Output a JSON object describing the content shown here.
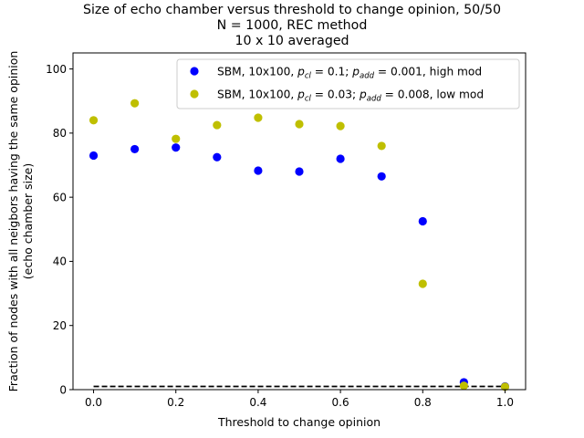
{
  "chart_data": {
    "type": "scatter",
    "title_lines": [
      "Size of echo chamber versus threshold to change opinion, 50/50",
      "N = 1000, REC method",
      "10 x 10 averaged"
    ],
    "xlabel": "Threshold to change opinion",
    "ylabel_lines": [
      "Fraction of nodes with all neigbors having the same opinion",
      "(echo chamber size)"
    ],
    "xlim": [
      -0.05,
      1.05
    ],
    "ylim": [
      0,
      105
    ],
    "xticks": [
      0.0,
      0.2,
      0.4,
      0.6,
      0.8,
      1.0
    ],
    "xtick_labels": [
      "0.0",
      "0.2",
      "0.4",
      "0.6",
      "0.8",
      "1.0"
    ],
    "yticks": [
      0,
      20,
      40,
      60,
      80,
      100
    ],
    "ytick_labels": [
      "0",
      "20",
      "40",
      "60",
      "80",
      "100"
    ],
    "grid": false,
    "legend_position": "top-right",
    "x": [
      0.0,
      0.1,
      0.2,
      0.3,
      0.4,
      0.5,
      0.6,
      0.7,
      0.8,
      0.9,
      1.0
    ],
    "series": [
      {
        "name": "SBM, 10x100, p_cl = 0.1; p_add = 0.001, high mod",
        "legend": {
          "prefix": "SBM, 10x100, ",
          "p1_sub": "cl",
          "p1_val": "0.1",
          "p2_sub": "add",
          "p2_val": "0.001",
          "suffix": ", high mod"
        },
        "color": "#0000ff",
        "values": [
          73.0,
          75.0,
          75.5,
          72.5,
          68.3,
          68.0,
          72.0,
          66.5,
          52.5,
          2.3,
          1.0
        ]
      },
      {
        "name": "SBM, 10x100, p_cl = 0.03; p_add = 0.008, low mod",
        "legend": {
          "prefix": "SBM, 10x100, ",
          "p1_sub": "cl",
          "p1_val": "0.03",
          "p2_sub": "add",
          "p2_val": "0.008",
          "suffix": ", low mod"
        },
        "color": "#bfbf00",
        "values": [
          84.0,
          89.3,
          78.2,
          82.5,
          84.8,
          82.8,
          82.2,
          76.0,
          33.0,
          1.2,
          0.9
        ]
      }
    ],
    "reference_line": {
      "style": "dashed",
      "color": "#000000",
      "x": [
        0.0,
        1.0
      ],
      "y": [
        1.0,
        1.0
      ]
    }
  }
}
